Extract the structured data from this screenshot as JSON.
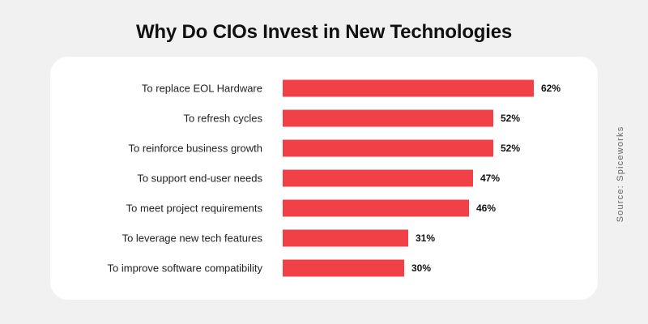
{
  "chart_data": {
    "type": "bar",
    "orientation": "horizontal",
    "title": "Why Do CIOs Invest in New Technologies",
    "categories": [
      "To replace EOL Hardware",
      "To refresh cycles",
      "To reinforce business growth",
      "To support end-user needs",
      "To meet project requirements",
      "To leverage new tech features",
      "To improve software compatibility"
    ],
    "values": [
      62,
      52,
      52,
      47,
      46,
      31,
      30
    ],
    "value_labels": [
      "62%",
      "52%",
      "52%",
      "47%",
      "46%",
      "31%",
      "30%"
    ],
    "unit": "%",
    "bar_color": "#f24047",
    "grid": false,
    "legend": "none"
  },
  "source": "Source: Spiceworks"
}
